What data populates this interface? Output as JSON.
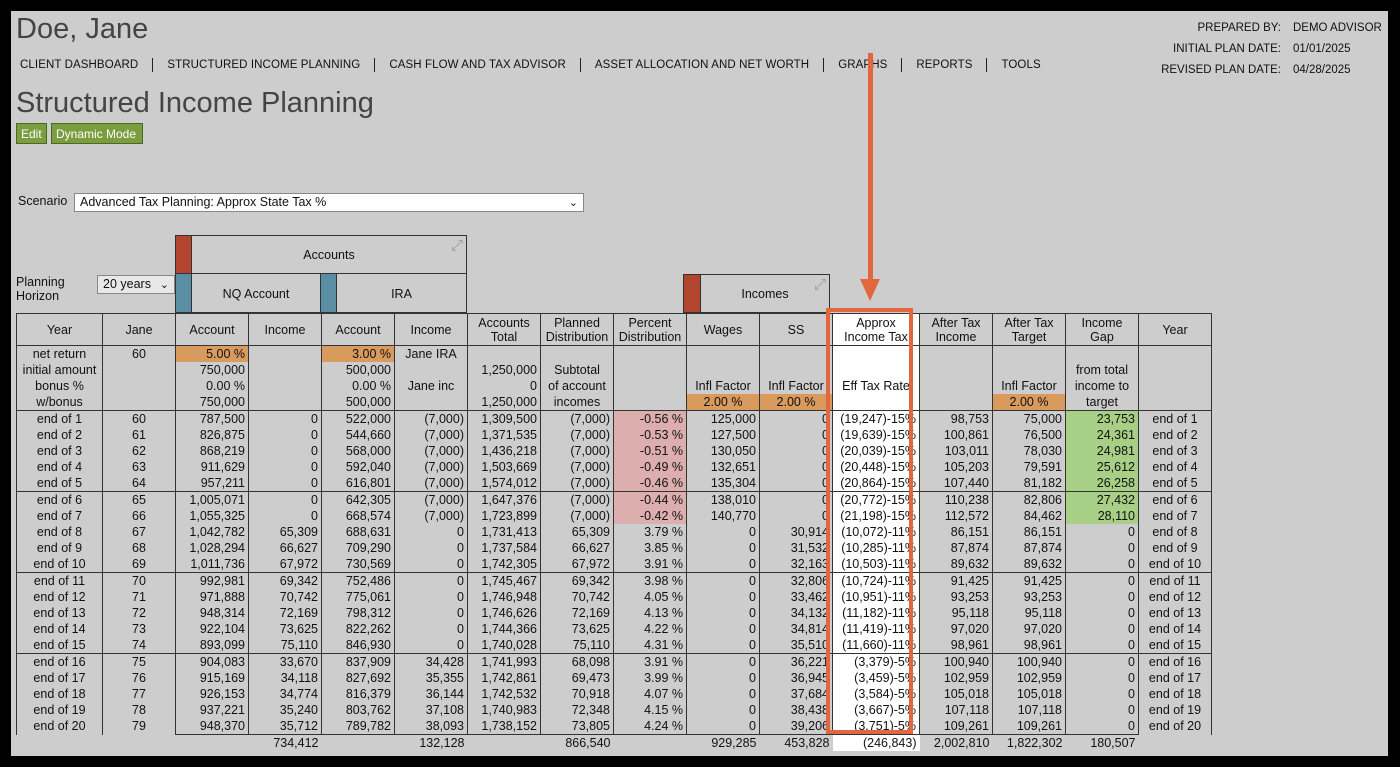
{
  "header": {
    "client_name": "Doe, Jane",
    "page_title": "Structured Income Planning",
    "prepared": [
      {
        "label": "PREPARED BY:",
        "value": "DEMO ADVISOR"
      },
      {
        "label": "INITIAL PLAN DATE:",
        "value": "01/01/2025"
      },
      {
        "label": "REVISED PLAN DATE:",
        "value": "04/28/2025"
      }
    ]
  },
  "nav": [
    "CLIENT DASHBOARD",
    "STRUCTURED INCOME PLANNING",
    "CASH FLOW AND TAX ADVISOR",
    "ASSET ALLOCATION AND NET WORTH",
    "GRAPHS",
    "REPORTS",
    "TOOLS"
  ],
  "buttons": {
    "edit": "Edit",
    "dynamic": "Dynamic Mode"
  },
  "scenario": {
    "label": "Scenario",
    "selected": "Advanced Tax Planning: Approx State Tax %"
  },
  "horizon": {
    "label_line1": "Planning",
    "label_line2": "Horizon",
    "selected": "20 years"
  },
  "groups": {
    "accounts": "Accounts",
    "nq": "NQ Account",
    "ira": "IRA",
    "incomes": "Incomes"
  },
  "colors": {
    "red_swatch": "#b3442e",
    "blue_swatch": "#5a8fa3",
    "highlight": "#e2663e",
    "orange_cell": "#d99a5e",
    "pink_cell": "#ddaeae",
    "green_cell": "#a8cf86"
  },
  "icons": {
    "collapse": "collapse-arrows-icon",
    "dropdown": "chevron-down-icon"
  },
  "columns": [
    {
      "l1": "Year",
      "l2": ""
    },
    {
      "l1": "Jane",
      "l2": ""
    },
    {
      "l1": "Account",
      "l2": ""
    },
    {
      "l1": "Income",
      "l2": ""
    },
    {
      "l1": "Account",
      "l2": ""
    },
    {
      "l1": "Income",
      "l2": ""
    },
    {
      "l1": "Accounts",
      "l2": "Total"
    },
    {
      "l1": "Planned",
      "l2": "Distribution"
    },
    {
      "l1": "Percent",
      "l2": "Distribution"
    },
    {
      "l1": "Wages",
      "l2": ""
    },
    {
      "l1": "SS",
      "l2": ""
    },
    {
      "l1": "Approx",
      "l2": "Income Tax"
    },
    {
      "l1": "After Tax",
      "l2": "Income"
    },
    {
      "l1": "After Tax",
      "l2": "Target"
    },
    {
      "l1": "Income",
      "l2": "Gap"
    },
    {
      "l1": "Year",
      "l2": ""
    }
  ],
  "param_rows": [
    [
      "net return",
      "60",
      "5.00  %",
      "",
      "3.00  %",
      "Jane IRA",
      "",
      "",
      "",
      "",
      "",
      "",
      "",
      "",
      "",
      ""
    ],
    [
      "initial amount",
      "",
      "750,000",
      "",
      "500,000",
      "",
      "1,250,000",
      "Subtotal",
      "",
      "",
      "",
      "",
      "",
      "",
      "from total",
      ""
    ],
    [
      "bonus %",
      "",
      "0.00  %",
      "",
      "0.00  %",
      "Jane inc",
      "0",
      "of account",
      "",
      "Infl Factor",
      "Infl Factor",
      "Eff Tax Rate",
      "",
      "Infl Factor",
      "income to",
      ""
    ],
    [
      "w/bonus",
      "",
      "750,000",
      "",
      "500,000",
      "",
      "1,250,000",
      "incomes",
      "",
      "2.00  %",
      "2.00  %",
      "",
      "",
      "2.00  %",
      "target",
      ""
    ]
  ],
  "rows": [
    [
      "end of 1",
      "60",
      "787,500",
      "0",
      "522,000",
      "(7,000)",
      "1,309,500",
      "(7,000)",
      "-0.56  %",
      "125,000",
      "0",
      "(19,247)-15%",
      "98,753",
      "75,000",
      "23,753",
      "end of 1"
    ],
    [
      "end of 2",
      "61",
      "826,875",
      "0",
      "544,660",
      "(7,000)",
      "1,371,535",
      "(7,000)",
      "-0.53  %",
      "127,500",
      "0",
      "(19,639)-15%",
      "100,861",
      "76,500",
      "24,361",
      "end of 2"
    ],
    [
      "end of 3",
      "62",
      "868,219",
      "0",
      "568,000",
      "(7,000)",
      "1,436,218",
      "(7,000)",
      "-0.51  %",
      "130,050",
      "0",
      "(20,039)-15%",
      "103,011",
      "78,030",
      "24,981",
      "end of 3"
    ],
    [
      "end of 4",
      "63",
      "911,629",
      "0",
      "592,040",
      "(7,000)",
      "1,503,669",
      "(7,000)",
      "-0.49  %",
      "132,651",
      "0",
      "(20,448)-15%",
      "105,203",
      "79,591",
      "25,612",
      "end of 4"
    ],
    [
      "end of 5",
      "64",
      "957,211",
      "0",
      "616,801",
      "(7,000)",
      "1,574,012",
      "(7,000)",
      "-0.46  %",
      "135,304",
      "0",
      "(20,864)-15%",
      "107,440",
      "81,182",
      "26,258",
      "end of 5"
    ],
    [
      "end of 6",
      "65",
      "1,005,071",
      "0",
      "642,305",
      "(7,000)",
      "1,647,376",
      "(7,000)",
      "-0.44  %",
      "138,010",
      "0",
      "(20,772)-15%",
      "110,238",
      "82,806",
      "27,432",
      "end of 6"
    ],
    [
      "end of 7",
      "66",
      "1,055,325",
      "0",
      "668,574",
      "(7,000)",
      "1,723,899",
      "(7,000)",
      "-0.42  %",
      "140,770",
      "0",
      "(21,198)-15%",
      "112,572",
      "84,462",
      "28,110",
      "end of 7"
    ],
    [
      "end of 8",
      "67",
      "1,042,782",
      "65,309",
      "688,631",
      "0",
      "1,731,413",
      "65,309",
      "3.79  %",
      "0",
      "30,914",
      "(10,072)-11%",
      "86,151",
      "86,151",
      "0",
      "end of 8"
    ],
    [
      "end of 9",
      "68",
      "1,028,294",
      "66,627",
      "709,290",
      "0",
      "1,737,584",
      "66,627",
      "3.85  %",
      "0",
      "31,532",
      "(10,285)-11%",
      "87,874",
      "87,874",
      "0",
      "end of 9"
    ],
    [
      "end of 10",
      "69",
      "1,011,736",
      "67,972",
      "730,569",
      "0",
      "1,742,305",
      "67,972",
      "3.91  %",
      "0",
      "32,163",
      "(10,503)-11%",
      "89,632",
      "89,632",
      "0",
      "end of 10"
    ],
    [
      "end of 11",
      "70",
      "992,981",
      "69,342",
      "752,486",
      "0",
      "1,745,467",
      "69,342",
      "3.98  %",
      "0",
      "32,806",
      "(10,724)-11%",
      "91,425",
      "91,425",
      "0",
      "end of 11"
    ],
    [
      "end of 12",
      "71",
      "971,888",
      "70,742",
      "775,061",
      "0",
      "1,746,948",
      "70,742",
      "4.05  %",
      "0",
      "33,462",
      "(10,951)-11%",
      "93,253",
      "93,253",
      "0",
      "end of 12"
    ],
    [
      "end of 13",
      "72",
      "948,314",
      "72,169",
      "798,312",
      "0",
      "1,746,626",
      "72,169",
      "4.13  %",
      "0",
      "34,132",
      "(11,182)-11%",
      "95,118",
      "95,118",
      "0",
      "end of 13"
    ],
    [
      "end of 14",
      "73",
      "922,104",
      "73,625",
      "822,262",
      "0",
      "1,744,366",
      "73,625",
      "4.22  %",
      "0",
      "34,814",
      "(11,419)-11%",
      "97,020",
      "97,020",
      "0",
      "end of 14"
    ],
    [
      "end of 15",
      "74",
      "893,099",
      "75,110",
      "846,930",
      "0",
      "1,740,028",
      "75,110",
      "4.31  %",
      "0",
      "35,510",
      "(11,660)-11%",
      "98,961",
      "98,961",
      "0",
      "end of 15"
    ],
    [
      "end of 16",
      "75",
      "904,083",
      "33,670",
      "837,909",
      "34,428",
      "1,741,993",
      "68,098",
      "3.91  %",
      "0",
      "36,221",
      "(3,379)-5%",
      "100,940",
      "100,940",
      "0",
      "end of 16"
    ],
    [
      "end of 17",
      "76",
      "915,169",
      "34,118",
      "827,692",
      "35,355",
      "1,742,861",
      "69,473",
      "3.99  %",
      "0",
      "36,945",
      "(3,459)-5%",
      "102,959",
      "102,959",
      "0",
      "end of 17"
    ],
    [
      "end of 18",
      "77",
      "926,153",
      "34,774",
      "816,379",
      "36,144",
      "1,742,532",
      "70,918",
      "4.07  %",
      "0",
      "37,684",
      "(3,584)-5%",
      "105,018",
      "105,018",
      "0",
      "end of 18"
    ],
    [
      "end of 19",
      "78",
      "937,221",
      "35,240",
      "803,762",
      "37,108",
      "1,740,983",
      "72,348",
      "4.15  %",
      "0",
      "38,438",
      "(3,667)-5%",
      "107,118",
      "107,118",
      "0",
      "end of 19"
    ],
    [
      "end of 20",
      "79",
      "948,370",
      "35,712",
      "789,782",
      "38,093",
      "1,738,152",
      "73,805",
      "4.24  %",
      "0",
      "39,206",
      "(3,751)-5%",
      "109,261",
      "109,261",
      "0",
      "end of 20"
    ]
  ],
  "totals": [
    "",
    "",
    "",
    "734,412",
    "",
    "132,128",
    "",
    "866,540",
    "",
    "929,285",
    "453,828",
    "(246,843)",
    "2,002,810",
    "1,822,302",
    "180,507",
    ""
  ]
}
